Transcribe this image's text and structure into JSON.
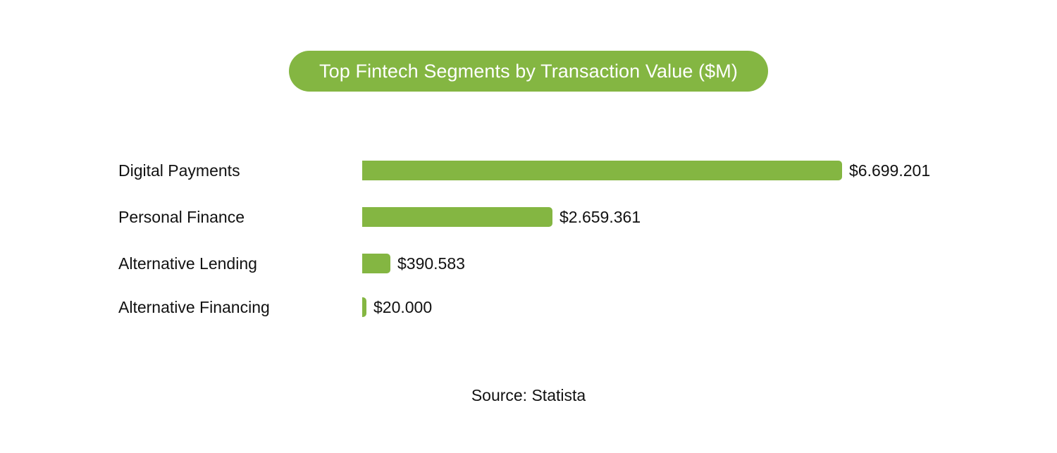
{
  "title": "Top Fintech Segments by Transaction Value ($M)",
  "source": "Source: Statista",
  "colors": {
    "bar": "#84b642",
    "title_bg": "#84b642",
    "title_text": "#ffffff",
    "text": "#111111"
  },
  "rows": [
    {
      "label": "Digital Payments",
      "value_label": "$6.699.201"
    },
    {
      "label": "Personal Finance",
      "value_label": "$2.659.361"
    },
    {
      "label": "Alternative Lending",
      "value_label": "$390.583"
    },
    {
      "label": "Alternative Financing",
      "value_label": "$20.000"
    }
  ],
  "chart_data": {
    "type": "bar",
    "orientation": "horizontal",
    "title": "Top Fintech Segments by Transaction Value ($M)",
    "categories": [
      "Digital Payments",
      "Personal Finance",
      "Alternative Lending",
      "Alternative Financing"
    ],
    "values": [
      6699.201,
      2659.361,
      390.583,
      20.0
    ],
    "value_labels": [
      "$6.699.201",
      "$2.659.361",
      "$390.583",
      "$20.000"
    ],
    "xlabel": "",
    "ylabel": "",
    "unit": "$M",
    "grid": false,
    "legend": null,
    "annotations": [
      "Source: Statista"
    ]
  }
}
